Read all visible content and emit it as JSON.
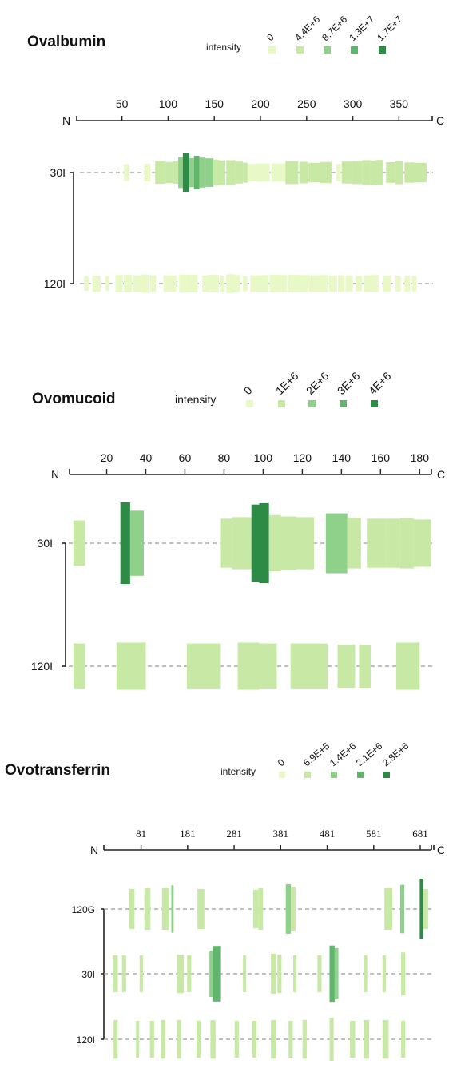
{
  "chart_data": [
    {
      "type": "heatmap",
      "title": "Ovalbumin",
      "legend_label": "intensity",
      "legend_levels": [
        "0",
        "4.4E+6",
        "8.7E+6",
        "1.3E+7",
        "1.7E+7"
      ],
      "legend_colors": [
        "#e8f8c6",
        "#c7e9a5",
        "#8fd08a",
        "#5fb56c",
        "#2e8b45"
      ],
      "axis_start": "N",
      "axis_end": "C",
      "xlim": [
        1,
        386
      ],
      "ticks": [
        50,
        100,
        150,
        200,
        250,
        300,
        350
      ],
      "tracks": [
        {
          "label": "30I",
          "segments": [
            {
              "start": 52,
              "end": 57,
              "value": 700000.0
            },
            {
              "start": 74,
              "end": 80,
              "value": 900000.0
            },
            {
              "start": 86,
              "end": 96,
              "value": 2900000.0
            },
            {
              "start": 97,
              "end": 104,
              "value": 2300000.0
            },
            {
              "start": 105,
              "end": 110,
              "value": 2800000.0
            },
            {
              "start": 111,
              "end": 115,
              "value": 9000000.0
            },
            {
              "start": 116,
              "end": 122,
              "value": 17000000.0
            },
            {
              "start": 123,
              "end": 127,
              "value": 7300000.0
            },
            {
              "start": 128,
              "end": 133,
              "value": 11500000.0
            },
            {
              "start": 134,
              "end": 139,
              "value": 8200000.0
            },
            {
              "start": 140,
              "end": 148,
              "value": 6900000.0
            },
            {
              "start": 149,
              "end": 154,
              "value": 5000000.0
            },
            {
              "start": 155,
              "end": 161,
              "value": 4100000.0
            },
            {
              "start": 163,
              "end": 172,
              "value": 4300000.0
            },
            {
              "start": 173,
              "end": 180,
              "value": 2700000.0
            },
            {
              "start": 181,
              "end": 185,
              "value": 1800000.0
            },
            {
              "start": 186,
              "end": 195,
              "value": 900000.0
            },
            {
              "start": 196,
              "end": 209,
              "value": 1200000.0
            },
            {
              "start": 212,
              "end": 226,
              "value": 1200000.0
            },
            {
              "start": 227,
              "end": 240,
              "value": 3200000.0
            },
            {
              "start": 242,
              "end": 250,
              "value": 2500000.0
            },
            {
              "start": 252,
              "end": 263,
              "value": 1600000.0
            },
            {
              "start": 264,
              "end": 276,
              "value": 2300000.0
            },
            {
              "start": 282,
              "end": 286,
              "value": 900000.0
            },
            {
              "start": 288,
              "end": 298,
              "value": 2700000.0
            },
            {
              "start": 299,
              "end": 309,
              "value": 3200000.0
            },
            {
              "start": 310,
              "end": 318,
              "value": 4400000.0
            },
            {
              "start": 319,
              "end": 324,
              "value": 4000000.0
            },
            {
              "start": 325,
              "end": 332,
              "value": 4600000.0
            },
            {
              "start": 336,
              "end": 345,
              "value": 2100000.0
            },
            {
              "start": 346,
              "end": 353,
              "value": 3400000.0
            },
            {
              "start": 356,
              "end": 366,
              "value": 1900000.0
            },
            {
              "start": 367,
              "end": 379,
              "value": 1600000.0
            }
          ]
        },
        {
          "label": "120I",
          "segments": [
            {
              "start": 9,
              "end": 13,
              "value": 300000.0
            },
            {
              "start": 18,
              "end": 26,
              "value": 600000.0
            },
            {
              "start": 32,
              "end": 35,
              "value": 300000.0
            },
            {
              "start": 43,
              "end": 50,
              "value": 800000.0
            },
            {
              "start": 52,
              "end": 60,
              "value": 900000.0
            },
            {
              "start": 62,
              "end": 70,
              "value": 700000.0
            },
            {
              "start": 71,
              "end": 78,
              "value": 1200000.0
            },
            {
              "start": 80,
              "end": 86,
              "value": 700000.0
            },
            {
              "start": 95,
              "end": 101,
              "value": 700000.0
            },
            {
              "start": 102,
              "end": 108,
              "value": 600000.0
            },
            {
              "start": 112,
              "end": 118,
              "value": 1100000.0
            },
            {
              "start": 119,
              "end": 124,
              "value": 1000000.0
            },
            {
              "start": 125,
              "end": 131,
              "value": 900000.0
            },
            {
              "start": 137,
              "end": 141,
              "value": 600000.0
            },
            {
              "start": 142,
              "end": 148,
              "value": 1000000.0
            },
            {
              "start": 149,
              "end": 154,
              "value": 900000.0
            },
            {
              "start": 156,
              "end": 160,
              "value": 600000.0
            },
            {
              "start": 163,
              "end": 171,
              "value": 1300000.0
            },
            {
              "start": 172,
              "end": 177,
              "value": 800000.0
            },
            {
              "start": 181,
              "end": 185,
              "value": 400000.0
            },
            {
              "start": 189,
              "end": 199,
              "value": 700000.0
            },
            {
              "start": 200,
              "end": 208,
              "value": 800000.0
            },
            {
              "start": 210,
              "end": 219,
              "value": 900000.0
            },
            {
              "start": 220,
              "end": 228,
              "value": 800000.0
            },
            {
              "start": 230,
              "end": 240,
              "value": 900000.0
            },
            {
              "start": 241,
              "end": 250,
              "value": 800000.0
            },
            {
              "start": 252,
              "end": 261,
              "value": 700000.0
            },
            {
              "start": 262,
              "end": 272,
              "value": 800000.0
            },
            {
              "start": 274,
              "end": 282,
              "value": 600000.0
            },
            {
              "start": 284,
              "end": 290,
              "value": 700000.0
            },
            {
              "start": 292,
              "end": 299,
              "value": 600000.0
            },
            {
              "start": 303,
              "end": 309,
              "value": 400000.0
            },
            {
              "start": 312,
              "end": 318,
              "value": 700000.0
            },
            {
              "start": 319,
              "end": 327,
              "value": 800000.0
            },
            {
              "start": 333,
              "end": 340,
              "value": 600000.0
            },
            {
              "start": 346,
              "end": 351,
              "value": 500000.0
            },
            {
              "start": 356,
              "end": 361,
              "value": 600000.0
            },
            {
              "start": 364,
              "end": 368,
              "value": 400000.0
            }
          ]
        }
      ]
    },
    {
      "type": "heatmap",
      "title": "Ovomucoid",
      "legend_label": "intensity",
      "legend_levels": [
        "0",
        "1E+6",
        "2E+6",
        "3E+6",
        "4E+6"
      ],
      "legend_colors": [
        "#e8f8c6",
        "#c7e9a5",
        "#8fd08a",
        "#5fb56c",
        "#2e8b45"
      ],
      "axis_start": "N",
      "axis_end": "C",
      "xlim": [
        1,
        186
      ],
      "ticks": [
        20,
        40,
        60,
        80,
        100,
        120,
        140,
        160,
        180
      ],
      "tracks": [
        {
          "label": "30I",
          "segments": [
            {
              "start": 3,
              "end": 8,
              "value": 500000.0
            },
            {
              "start": 27,
              "end": 31,
              "value": 4000000.0
            },
            {
              "start": 32,
              "end": 38,
              "value": 2000000.0
            },
            {
              "start": 78,
              "end": 83,
              "value": 700000.0
            },
            {
              "start": 84,
              "end": 93,
              "value": 900000.0
            },
            {
              "start": 94,
              "end": 97,
              "value": 3400000.0
            },
            {
              "start": 98,
              "end": 102,
              "value": 3800000.0
            },
            {
              "start": 103,
              "end": 108,
              "value": 1200000.0
            },
            {
              "start": 109,
              "end": 116,
              "value": 1000000.0
            },
            {
              "start": 117,
              "end": 125,
              "value": 900000.0
            },
            {
              "start": 132,
              "end": 142,
              "value": 1500000.0
            },
            {
              "start": 143,
              "end": 149,
              "value": 800000.0
            },
            {
              "start": 153,
              "end": 162,
              "value": 700000.0
            },
            {
              "start": 163,
              "end": 169,
              "value": 700000.0
            },
            {
              "start": 170,
              "end": 176,
              "value": 800000.0
            },
            {
              "start": 177,
              "end": 185,
              "value": 600000.0
            }
          ]
        },
        {
          "label": "120I",
          "segments": [
            {
              "start": 3,
              "end": 8,
              "value": 500000.0
            },
            {
              "start": 25,
              "end": 39,
              "value": 600000.0
            },
            {
              "start": 61,
              "end": 77,
              "value": 500000.0
            },
            {
              "start": 87,
              "end": 97,
              "value": 600000.0
            },
            {
              "start": 98,
              "end": 106,
              "value": 500000.0
            },
            {
              "start": 114,
              "end": 132,
              "value": 500000.0
            },
            {
              "start": 138,
              "end": 146,
              "value": 400000.0
            },
            {
              "start": 149,
              "end": 154,
              "value": 400000.0
            },
            {
              "start": 168,
              "end": 179,
              "value": 600000.0
            }
          ]
        }
      ]
    },
    {
      "type": "heatmap",
      "title": "Ovotransferrin",
      "legend_label": "intensity",
      "legend_levels": [
        "0",
        "6.9E+5",
        "1.4E+6",
        "2.1E+6",
        "2.8E+6"
      ],
      "legend_colors": [
        "#e8f8c6",
        "#c7e9a5",
        "#8fd08a",
        "#5fb56c",
        "#2e8b45"
      ],
      "axis_start": "N",
      "axis_end": "C",
      "xlim": [
        1,
        705
      ],
      "ticks": [
        81,
        181,
        281,
        381,
        481,
        581,
        681
      ],
      "tracks": [
        {
          "label": "120G",
          "segments": [
            {
              "start": 56,
              "end": 66,
              "value": 600000.0
            },
            {
              "start": 88,
              "end": 100,
              "value": 700000.0
            },
            {
              "start": 126,
              "end": 140,
              "value": 700000.0
            },
            {
              "start": 146,
              "end": 150,
              "value": 1200000.0
            },
            {
              "start": 202,
              "end": 216,
              "value": 600000.0
            },
            {
              "start": 322,
              "end": 332,
              "value": 500000.0
            },
            {
              "start": 333,
              "end": 342,
              "value": 700000.0
            },
            {
              "start": 392,
              "end": 402,
              "value": 1400000.0
            },
            {
              "start": 403,
              "end": 412,
              "value": 900000.0
            },
            {
              "start": 604,
              "end": 620,
              "value": 700000.0
            },
            {
              "start": 638,
              "end": 646,
              "value": 1300000.0
            },
            {
              "start": 680,
              "end": 686,
              "value": 2800000.0
            },
            {
              "start": 687,
              "end": 697,
              "value": 600000.0
            }
          ]
        },
        {
          "label": "30I",
          "segments": [
            {
              "start": 20,
              "end": 30,
              "value": 400000.0
            },
            {
              "start": 40,
              "end": 48,
              "value": 400000.0
            },
            {
              "start": 78,
              "end": 84,
              "value": 400000.0
            },
            {
              "start": 158,
              "end": 172,
              "value": 500000.0
            },
            {
              "start": 180,
              "end": 188,
              "value": 400000.0
            },
            {
              "start": 228,
              "end": 234,
              "value": 1100000.0
            },
            {
              "start": 235,
              "end": 250,
              "value": 2100000.0
            },
            {
              "start": 300,
              "end": 306,
              "value": 400000.0
            },
            {
              "start": 360,
              "end": 370,
              "value": 600000.0
            },
            {
              "start": 374,
              "end": 382,
              "value": 500000.0
            },
            {
              "start": 408,
              "end": 414,
              "value": 400000.0
            },
            {
              "start": 460,
              "end": 468,
              "value": 400000.0
            },
            {
              "start": 486,
              "end": 496,
              "value": 2200000.0
            },
            {
              "start": 497,
              "end": 504,
              "value": 1600000.0
            },
            {
              "start": 560,
              "end": 566,
              "value": 400000.0
            },
            {
              "start": 600,
              "end": 606,
              "value": 400000.0
            },
            {
              "start": 640,
              "end": 648,
              "value": 800000.0
            }
          ]
        },
        {
          "label": "120I",
          "segments": [
            {
              "start": 22,
              "end": 30,
              "value": 500000.0
            },
            {
              "start": 70,
              "end": 76,
              "value": 400000.0
            },
            {
              "start": 100,
              "end": 108,
              "value": 400000.0
            },
            {
              "start": 124,
              "end": 132,
              "value": 500000.0
            },
            {
              "start": 158,
              "end": 166,
              "value": 500000.0
            },
            {
              "start": 200,
              "end": 208,
              "value": 400000.0
            },
            {
              "start": 230,
              "end": 240,
              "value": 500000.0
            },
            {
              "start": 282,
              "end": 290,
              "value": 400000.0
            },
            {
              "start": 320,
              "end": 328,
              "value": 400000.0
            },
            {
              "start": 360,
              "end": 370,
              "value": 500000.0
            },
            {
              "start": 398,
              "end": 406,
              "value": 400000.0
            },
            {
              "start": 428,
              "end": 436,
              "value": 500000.0
            },
            {
              "start": 486,
              "end": 494,
              "value": 800000.0
            },
            {
              "start": 530,
              "end": 540,
              "value": 400000.0
            },
            {
              "start": 560,
              "end": 570,
              "value": 500000.0
            },
            {
              "start": 600,
              "end": 612,
              "value": 500000.0
            },
            {
              "start": 640,
              "end": 648,
              "value": 400000.0
            }
          ]
        }
      ]
    }
  ]
}
